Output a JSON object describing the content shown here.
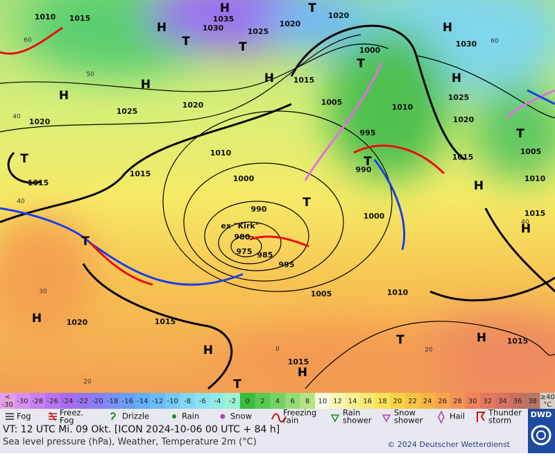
{
  "map": {
    "pressure_labels": [
      "1010",
      "1015",
      "1035",
      "1030",
      "1025",
      "1020",
      "1020",
      "1000",
      "1030",
      "1015",
      "1005",
      "1010",
      "1025",
      "1020",
      "1025",
      "1020",
      "1020",
      "995",
      "1010",
      "990",
      "1015",
      "1015",
      "1005",
      "1000",
      "1010",
      "1015",
      "990",
      "1000",
      "1015",
      "980",
      "975",
      "985",
      "995",
      "1005",
      "1010",
      "1020",
      "1015",
      "1015",
      "1015"
    ],
    "centers": [
      "H",
      "T",
      "H",
      "T",
      "T",
      "H",
      "H",
      "H",
      "H",
      "H",
      "T",
      "T",
      "T",
      "H",
      "T",
      "T",
      "H",
      "H",
      "H",
      "T",
      "H",
      "T",
      "H",
      "T"
    ],
    "isotherm_labels": [
      "60",
      "50",
      "40",
      "40",
      "30",
      "20",
      "60",
      "40",
      "20",
      "0"
    ],
    "storm_label": "ex \"Kirk\""
  },
  "color_scale": {
    "cells": [
      {
        "lines": [
          "<",
          "-30"
        ],
        "color": "#e4a0e4"
      },
      {
        "lines": [
          "-30"
        ],
        "color": "#d890f0"
      },
      {
        "lines": [
          "-28"
        ],
        "color": "#c880f0"
      },
      {
        "lines": [
          "-26"
        ],
        "color": "#b874f0"
      },
      {
        "lines": [
          "-24"
        ],
        "color": "#a86cf0"
      },
      {
        "lines": [
          "-22"
        ],
        "color": "#9874f0"
      },
      {
        "lines": [
          "-20"
        ],
        "color": "#8880f4"
      },
      {
        "lines": [
          "-18"
        ],
        "color": "#7890f8"
      },
      {
        "lines": [
          "-16"
        ],
        "color": "#68a0f8"
      },
      {
        "lines": [
          "-14"
        ],
        "color": "#60b0f8"
      },
      {
        "lines": [
          "-12"
        ],
        "color": "#68bcf8"
      },
      {
        "lines": [
          "-10"
        ],
        "color": "#74caf8"
      },
      {
        "lines": [
          "-8"
        ],
        "color": "#80d8f4"
      },
      {
        "lines": [
          "-6"
        ],
        "color": "#8ae2ee"
      },
      {
        "lines": [
          "-4"
        ],
        "color": "#92eae4"
      },
      {
        "lines": [
          "-2"
        ],
        "color": "#9cf0d4"
      },
      {
        "lines": [
          "0"
        ],
        "color": "#3cbc3c"
      },
      {
        "lines": [
          "2"
        ],
        "color": "#58c850"
      },
      {
        "lines": [
          "4"
        ],
        "color": "#74d264"
      },
      {
        "lines": [
          "6"
        ],
        "color": "#94dc74"
      },
      {
        "lines": [
          "8"
        ],
        "color": "#b4e484"
      },
      {
        "lines": [
          "10"
        ],
        "color": "#fafae4"
      },
      {
        "lines": [
          "12"
        ],
        "color": "#f8f8b4"
      },
      {
        "lines": [
          "14"
        ],
        "color": "#f8f090"
      },
      {
        "lines": [
          "16"
        ],
        "color": "#f8e874"
      },
      {
        "lines": [
          "18"
        ],
        "color": "#f8e058"
      },
      {
        "lines": [
          "20"
        ],
        "color": "#f8d444"
      },
      {
        "lines": [
          "22"
        ],
        "color": "#f8c444"
      },
      {
        "lines": [
          "24"
        ],
        "color": "#f8b444"
      },
      {
        "lines": [
          "26"
        ],
        "color": "#f8a44c"
      },
      {
        "lines": [
          "28"
        ],
        "color": "#f49454"
      },
      {
        "lines": [
          "30"
        ],
        "color": "#ee8458"
      },
      {
        "lines": [
          "32"
        ],
        "color": "#e4785e"
      },
      {
        "lines": [
          "34"
        ],
        "color": "#d87262"
      },
      {
        "lines": [
          "36"
        ],
        "color": "#c87060"
      },
      {
        "lines": [
          "38"
        ],
        "color": "#b87464"
      },
      {
        "lines": [
          "≥40",
          "°C"
        ],
        "color": "#d8d0c8"
      }
    ]
  },
  "legend": [
    {
      "lines": [
        "Fog"
      ]
    },
    {
      "lines": [
        "Freez.",
        "Fog"
      ]
    },
    {
      "lines": [
        "Drizzle"
      ]
    },
    {
      "lines": [
        "Rain"
      ]
    },
    {
      "lines": [
        "Snow"
      ]
    },
    {
      "lines": [
        "Freezing",
        "rain"
      ]
    },
    {
      "lines": [
        "Rain",
        "shower"
      ]
    },
    {
      "lines": [
        "Snow",
        "shower"
      ]
    },
    {
      "lines": [
        "Hail"
      ]
    },
    {
      "lines": [
        "Thunder",
        "storm"
      ]
    }
  ],
  "footer": {
    "valid_time": "VT: 12 UTC Mi.  09 Okt. [ICON 2024-10-06  00 UTC + 84 h]",
    "description": "Sea level pressure (hPa), Weather, Temperature 2m (°C)",
    "copyright": "© 2024 Deutscher Wetterdienst",
    "logo": "DWD"
  }
}
